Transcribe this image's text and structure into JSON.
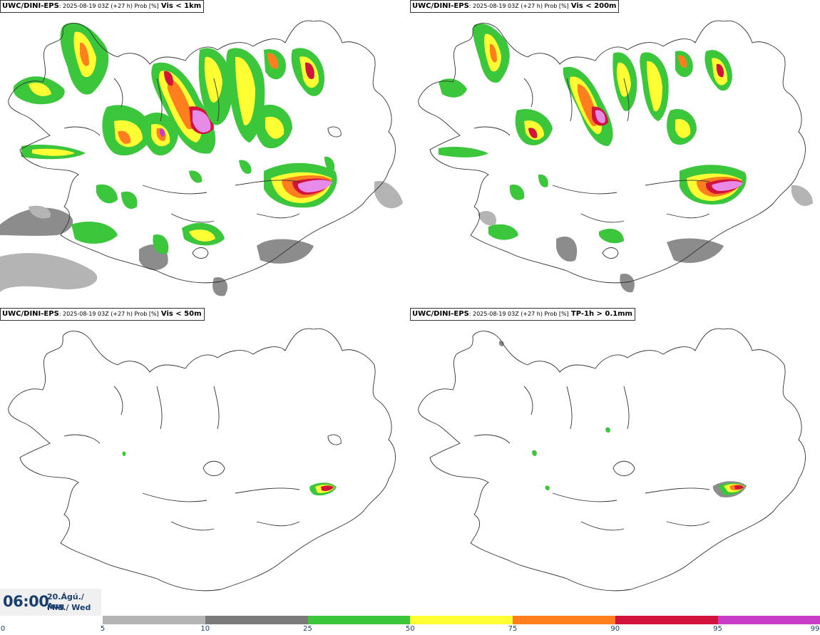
{
  "panels": [
    {
      "model": "UWC/DINI-EPS",
      "meta": ": 2025-08-19 03Z (+27 h) Prob [%]",
      "variable": "Vis < 1km"
    },
    {
      "model": "UWC/DINI-EPS",
      "meta": ": 2025-08-19 03Z (+27 h) Prob [%]",
      "variable": "Vis < 200m"
    },
    {
      "model": "UWC/DINI-EPS",
      "meta": ": 2025-08-19 03Z (+27 h) Prob [%]",
      "variable": "Vis < 50m"
    },
    {
      "model": "UWC/DINI-EPS",
      "meta": ": 2025-08-19 03Z (+27 h) Prob [%]",
      "variable": "TP-1h > 0.1mm"
    }
  ],
  "valid_time": {
    "time": "06:00",
    "date_line1": "20.Ágú./ Aug",
    "date_line2": "Mið./ Wed"
  },
  "legend": {
    "ticks": [
      "0",
      "5",
      "10",
      "25",
      "50",
      "75",
      "90",
      "95",
      "99"
    ],
    "colors": [
      "#b4b4b4",
      "#7a7a7a",
      "#3cc63c",
      "#ffff33",
      "#ff7f1e",
      "#d2143c",
      "#c83cc8",
      "#f5c0f5"
    ]
  }
}
